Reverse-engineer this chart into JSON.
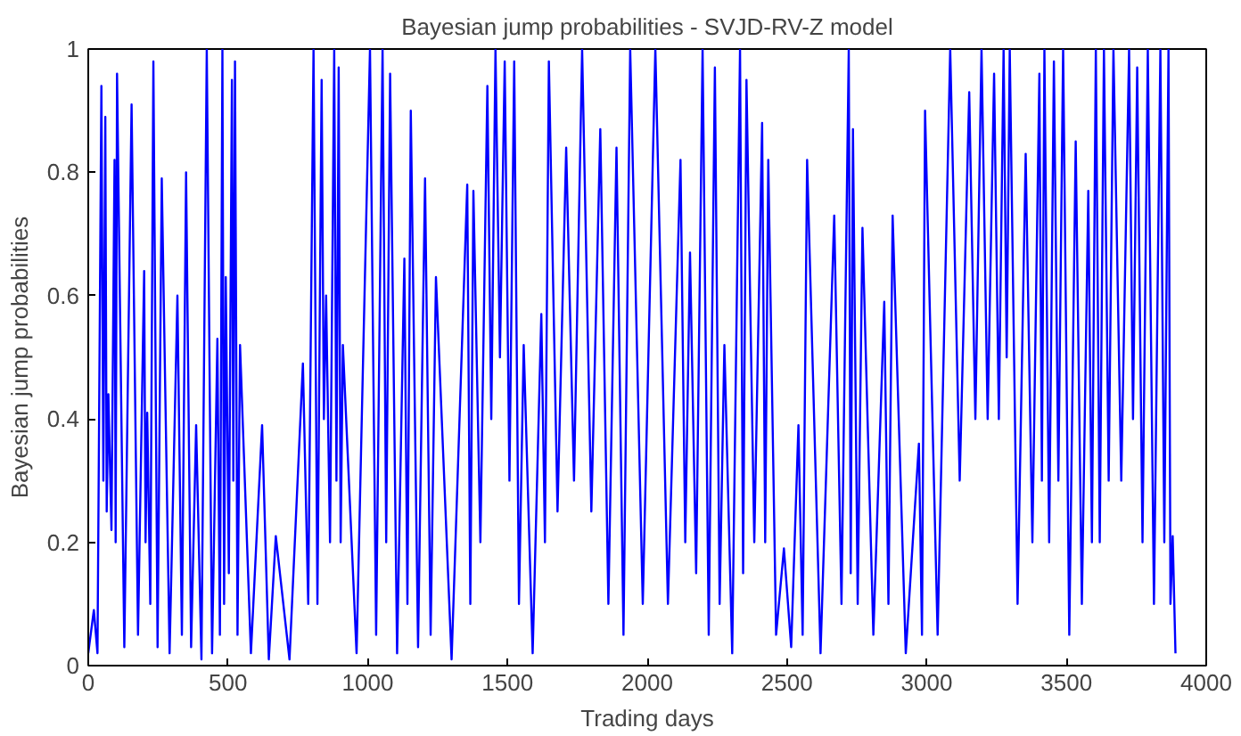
{
  "chart_data": {
    "type": "line",
    "title": "Bayesian jump probabilities - SVJD-RV-Z model",
    "xlabel": "Trading days",
    "ylabel": "Bayesian jump probabilities",
    "x": [
      0,
      20,
      33,
      47,
      54,
      61,
      66,
      72,
      83,
      94,
      98,
      103,
      129,
      155,
      178,
      200,
      205,
      211,
      222,
      233,
      248,
      263,
      291,
      319,
      335,
      350,
      368,
      386,
      405,
      424,
      443,
      462,
      471,
      480,
      486,
      492,
      503,
      514,
      519,
      525,
      534,
      543,
      582,
      622,
      646,
      671,
      720,
      768,
      787,
      806,
      820,
      835,
      843,
      851,
      865,
      880,
      888,
      896,
      903,
      911,
      960,
      1008,
      1030,
      1053,
      1066,
      1080,
      1105,
      1131,
      1142,
      1154,
      1180,
      1205,
      1225,
      1244,
      1300,
      1356,
      1367,
      1378,
      1403,
      1428,
      1442,
      1457,
      1473,
      1490,
      1507,
      1524,
      1541,
      1558,
      1590,
      1621,
      1634,
      1648,
      1679,
      1710,
      1738,
      1767,
      1800,
      1832,
      1861,
      1890,
      1915,
      1939,
      1984,
      2029,
      2074,
      2119,
      2136,
      2153,
      2175,
      2198,
      2220,
      2242,
      2259,
      2276,
      2304,
      2332,
      2343,
      2355,
      2383,
      2411,
      2422,
      2433,
      2461,
      2489,
      2515,
      2541,
      2556,
      2572,
      2620,
      2669,
      2695,
      2721,
      2728,
      2736,
      2753,
      2770,
      2809,
      2848,
      2863,
      2878,
      2925,
      2972,
      2983,
      2994,
      3039,
      3084,
      3118,
      3152,
      3174,
      3196,
      3218,
      3241,
      3258,
      3275,
      3286,
      3297,
      3325,
      3354,
      3378,
      3403,
      3412,
      3421,
      3438,
      3455,
      3471,
      3488,
      3510,
      3533,
      3555,
      3578,
      3591,
      3605,
      3619,
      3634,
      3651,
      3668,
      3696,
      3724,
      3738,
      3753,
      3772,
      3791,
      3813,
      3836,
      3850,
      3865,
      3872,
      3880,
      3890
    ],
    "series": [
      {
        "color": "#0000ff",
        "values": [
          0.02,
          0.09,
          0.02,
          0.94,
          0.3,
          0.89,
          0.25,
          0.44,
          0.22,
          0.82,
          0.2,
          0.96,
          0.03,
          0.91,
          0.05,
          0.64,
          0.2,
          0.41,
          0.1,
          0.98,
          0.03,
          0.79,
          0.02,
          0.6,
          0.05,
          0.8,
          0.03,
          0.39,
          0.01,
          1,
          0.02,
          0.53,
          0.05,
          1,
          0.1,
          0.63,
          0.15,
          0.95,
          0.3,
          0.98,
          0.05,
          0.52,
          0.02,
          0.39,
          0.01,
          0.21,
          0.01,
          0.49,
          0.1,
          1,
          0.1,
          0.95,
          0.4,
          0.6,
          0.2,
          1,
          0.3,
          0.97,
          0.2,
          0.52,
          0.02,
          1,
          0.05,
          1,
          0.2,
          0.96,
          0.02,
          0.66,
          0.1,
          0.9,
          0.03,
          0.79,
          0.05,
          0.63,
          0.01,
          0.78,
          0.1,
          0.77,
          0.2,
          0.94,
          0.4,
          1,
          0.5,
          0.98,
          0.3,
          0.98,
          0.1,
          0.52,
          0.02,
          0.57,
          0.2,
          0.98,
          0.25,
          0.84,
          0.3,
          1,
          0.25,
          0.87,
          0.1,
          0.84,
          0.05,
          1,
          0.1,
          1,
          0.1,
          0.82,
          0.2,
          0.67,
          0.15,
          1,
          0.05,
          0.97,
          0.1,
          0.52,
          0.02,
          1,
          0.15,
          0.95,
          0.2,
          0.88,
          0.2,
          0.82,
          0.05,
          0.19,
          0.03,
          0.39,
          0.05,
          0.82,
          0.02,
          0.73,
          0.1,
          1,
          0.15,
          0.87,
          0.1,
          0.71,
          0.05,
          0.59,
          0.1,
          0.73,
          0.02,
          0.36,
          0.05,
          0.9,
          0.05,
          1,
          0.3,
          0.93,
          0.4,
          1,
          0.4,
          0.96,
          0.4,
          1,
          0.5,
          1,
          0.1,
          0.83,
          0.2,
          0.96,
          0.3,
          1,
          0.2,
          0.98,
          0.3,
          1,
          0.05,
          0.85,
          0.1,
          0.77,
          0.2,
          1,
          0.2,
          1,
          0.3,
          1,
          0.3,
          1,
          0.4,
          0.97,
          0.2,
          1,
          0.1,
          1,
          0.2,
          1,
          0.1,
          0.21,
          0.02
        ]
      }
    ],
    "xlim": [
      0,
      4000
    ],
    "xticks": [
      0,
      500,
      1000,
      1500,
      2000,
      2500,
      3000,
      3500,
      4000
    ],
    "ylim": [
      0,
      1
    ],
    "yticks": [
      0,
      0.2,
      0.4,
      0.6,
      0.8,
      1
    ],
    "grid": false,
    "marker": "none",
    "line_style": "solid"
  }
}
